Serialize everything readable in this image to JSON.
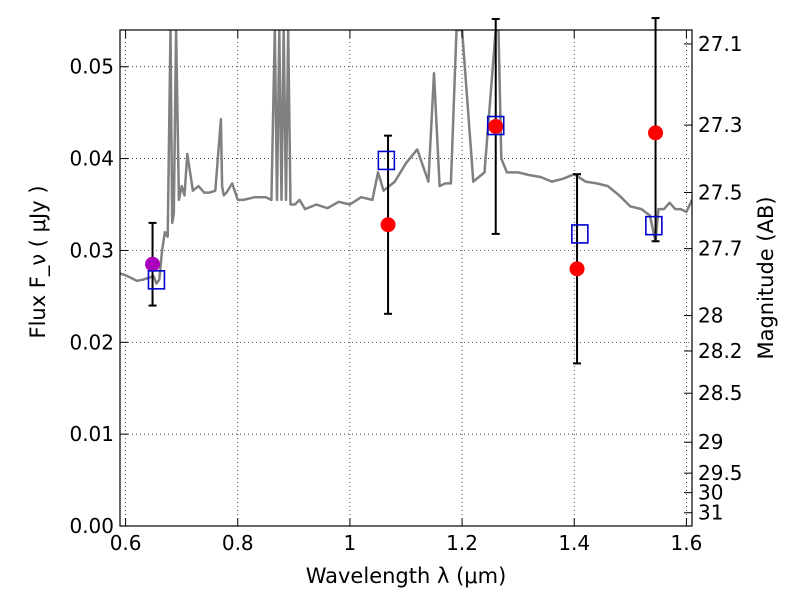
{
  "chart_data": {
    "type": "scatter",
    "xlabel": "Wavelength  λ (μm)",
    "ylabel": "Flux  F_ν  ( μJy )",
    "y2label": "Magnitude (AB)",
    "xlim": [
      0.59,
      1.61
    ],
    "ylim": [
      0.0,
      0.054
    ],
    "x_ticks": [
      0.6,
      0.8,
      1.0,
      1.2,
      1.4,
      1.6
    ],
    "x_tick_labels": [
      "0.6",
      "0.8",
      "1",
      "1.2",
      "1.4",
      "1.6"
    ],
    "y_ticks": [
      0.0,
      0.01,
      0.02,
      0.03,
      0.04,
      0.05
    ],
    "y_tick_labels": [
      "0.00",
      "0.01",
      "0.02",
      "0.03",
      "0.04",
      "0.05"
    ],
    "y2_ticks": [
      27.1,
      27.3,
      27.5,
      27.7,
      28,
      28.2,
      28.5,
      29,
      29.5,
      30,
      31
    ],
    "y2_tick_labels": [
      "27.1",
      "27.3",
      "27.5",
      "27.7",
      "28",
      "28.2",
      "28.5",
      "29",
      "29.5",
      "30",
      "31"
    ],
    "grid": true,
    "colors": {
      "model": "#808080",
      "observed": "#ff0000",
      "observed_special": "#aa00bb",
      "model_box": "#0000cc",
      "errorbar": "#000000"
    },
    "model_spectrum": {
      "x": [
        0.59,
        0.6,
        0.61,
        0.62,
        0.63,
        0.64,
        0.65,
        0.655,
        0.66,
        0.665,
        0.67,
        0.675,
        0.68,
        0.683,
        0.686,
        0.69,
        0.695,
        0.7,
        0.705,
        0.71,
        0.72,
        0.73,
        0.74,
        0.75,
        0.76,
        0.77,
        0.772,
        0.775,
        0.78,
        0.79,
        0.8,
        0.81,
        0.83,
        0.85,
        0.86,
        0.866,
        0.87,
        0.874,
        0.878,
        0.882,
        0.886,
        0.89,
        0.894,
        0.898,
        0.902,
        0.91,
        0.92,
        0.94,
        0.96,
        0.98,
        1.0,
        1.02,
        1.04,
        1.05,
        1.06,
        1.08,
        1.1,
        1.12,
        1.14,
        1.15,
        1.16,
        1.17,
        1.18,
        1.19,
        1.2,
        1.22,
        1.24,
        1.26,
        1.265,
        1.27,
        1.28,
        1.3,
        1.32,
        1.34,
        1.36,
        1.38,
        1.4,
        1.42,
        1.44,
        1.46,
        1.48,
        1.5,
        1.52,
        1.535,
        1.545,
        1.55,
        1.56,
        1.57,
        1.58,
        1.59,
        1.6,
        1.61
      ],
      "y": [
        0.0275,
        0.0273,
        0.027,
        0.0267,
        0.0268,
        0.027,
        0.0272,
        0.0264,
        0.0268,
        0.03,
        0.032,
        0.0315,
        0.054,
        0.033,
        0.034,
        0.054,
        0.0355,
        0.037,
        0.036,
        0.0405,
        0.0365,
        0.037,
        0.0363,
        0.0363,
        0.0365,
        0.0443,
        0.037,
        0.036,
        0.0363,
        0.0373,
        0.0355,
        0.0355,
        0.0358,
        0.0358,
        0.0355,
        0.054,
        0.0355,
        0.054,
        0.0355,
        0.054,
        0.0355,
        0.054,
        0.035,
        0.035,
        0.035,
        0.0355,
        0.0345,
        0.035,
        0.0346,
        0.0353,
        0.035,
        0.0358,
        0.0355,
        0.0385,
        0.0365,
        0.0375,
        0.0395,
        0.041,
        0.0375,
        0.0493,
        0.037,
        0.0373,
        0.0373,
        0.054,
        0.054,
        0.0375,
        0.0385,
        0.054,
        0.054,
        0.04,
        0.0385,
        0.0385,
        0.0382,
        0.038,
        0.0375,
        0.0378,
        0.0383,
        0.0375,
        0.0373,
        0.037,
        0.036,
        0.0348,
        0.0345,
        0.0338,
        0.031,
        0.0345,
        0.0345,
        0.0352,
        0.0345,
        0.0345,
        0.0342,
        0.0355
      ]
    },
    "observed_points": [
      {
        "x": 0.648,
        "y": 0.0285,
        "err_low": 0.0045,
        "err_high": 0.0045,
        "color_key": "observed_special"
      },
      {
        "x": 1.068,
        "y": 0.0328,
        "err_low": 0.0097,
        "err_high": 0.0097,
        "color_key": "observed"
      },
      {
        "x": 1.26,
        "y": 0.0435,
        "err_low": 0.0117,
        "err_high": 0.0117,
        "color_key": "observed"
      },
      {
        "x": 1.405,
        "y": 0.028,
        "err_low": 0.0103,
        "err_high": 0.0103,
        "color_key": "observed"
      },
      {
        "x": 1.545,
        "y": 0.0428,
        "err_low": 0.0118,
        "err_high": 0.0125,
        "color_key": "observed"
      }
    ],
    "model_points": [
      {
        "x": 0.655,
        "y": 0.0268
      },
      {
        "x": 1.065,
        "y": 0.0398
      },
      {
        "x": 1.26,
        "y": 0.0436
      },
      {
        "x": 1.41,
        "y": 0.0318
      },
      {
        "x": 1.542,
        "y": 0.0327
      }
    ]
  }
}
